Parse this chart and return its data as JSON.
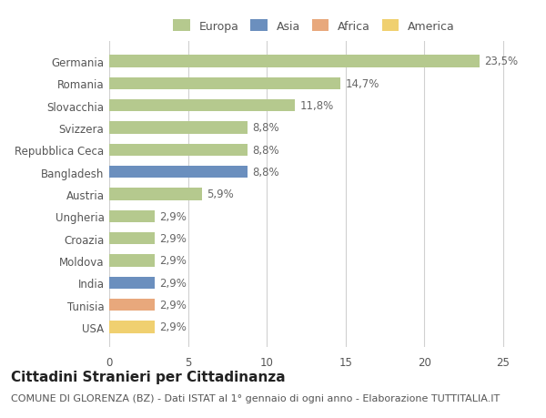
{
  "categories": [
    "USA",
    "Tunisia",
    "India",
    "Moldova",
    "Croazia",
    "Ungheria",
    "Austria",
    "Bangladesh",
    "Repubblica Ceca",
    "Svizzera",
    "Slovacchia",
    "Romania",
    "Germania"
  ],
  "values": [
    2.9,
    2.9,
    2.9,
    2.9,
    2.9,
    2.9,
    5.9,
    8.8,
    8.8,
    8.8,
    11.8,
    14.7,
    23.5
  ],
  "labels": [
    "2,9%",
    "2,9%",
    "2,9%",
    "2,9%",
    "2,9%",
    "2,9%",
    "5,9%",
    "8,8%",
    "8,8%",
    "8,8%",
    "11,8%",
    "14,7%",
    "23,5%"
  ],
  "continents": [
    "America",
    "Africa",
    "Asia",
    "Europa",
    "Europa",
    "Europa",
    "Europa",
    "Asia",
    "Europa",
    "Europa",
    "Europa",
    "Europa",
    "Europa"
  ],
  "continent_colors": {
    "Europa": "#b5c98e",
    "Asia": "#6b8fbe",
    "Africa": "#e8a87c",
    "America": "#f0d070"
  },
  "legend_order": [
    "Europa",
    "Asia",
    "Africa",
    "America"
  ],
  "xlim": [
    0,
    26
  ],
  "xticks": [
    0,
    5,
    10,
    15,
    20,
    25
  ],
  "title": "Cittadini Stranieri per Cittadinanza",
  "subtitle": "COMUNE DI GLORENZA (BZ) - Dati ISTAT al 1° gennaio di ogni anno - Elaborazione TUTTITALIA.IT",
  "bg_color": "#ffffff",
  "grid_color": "#d0d0d0",
  "bar_height": 0.55,
  "label_fontsize": 8.5,
  "title_fontsize": 11,
  "subtitle_fontsize": 8,
  "category_fontsize": 8.5,
  "tick_fontsize": 8.5
}
